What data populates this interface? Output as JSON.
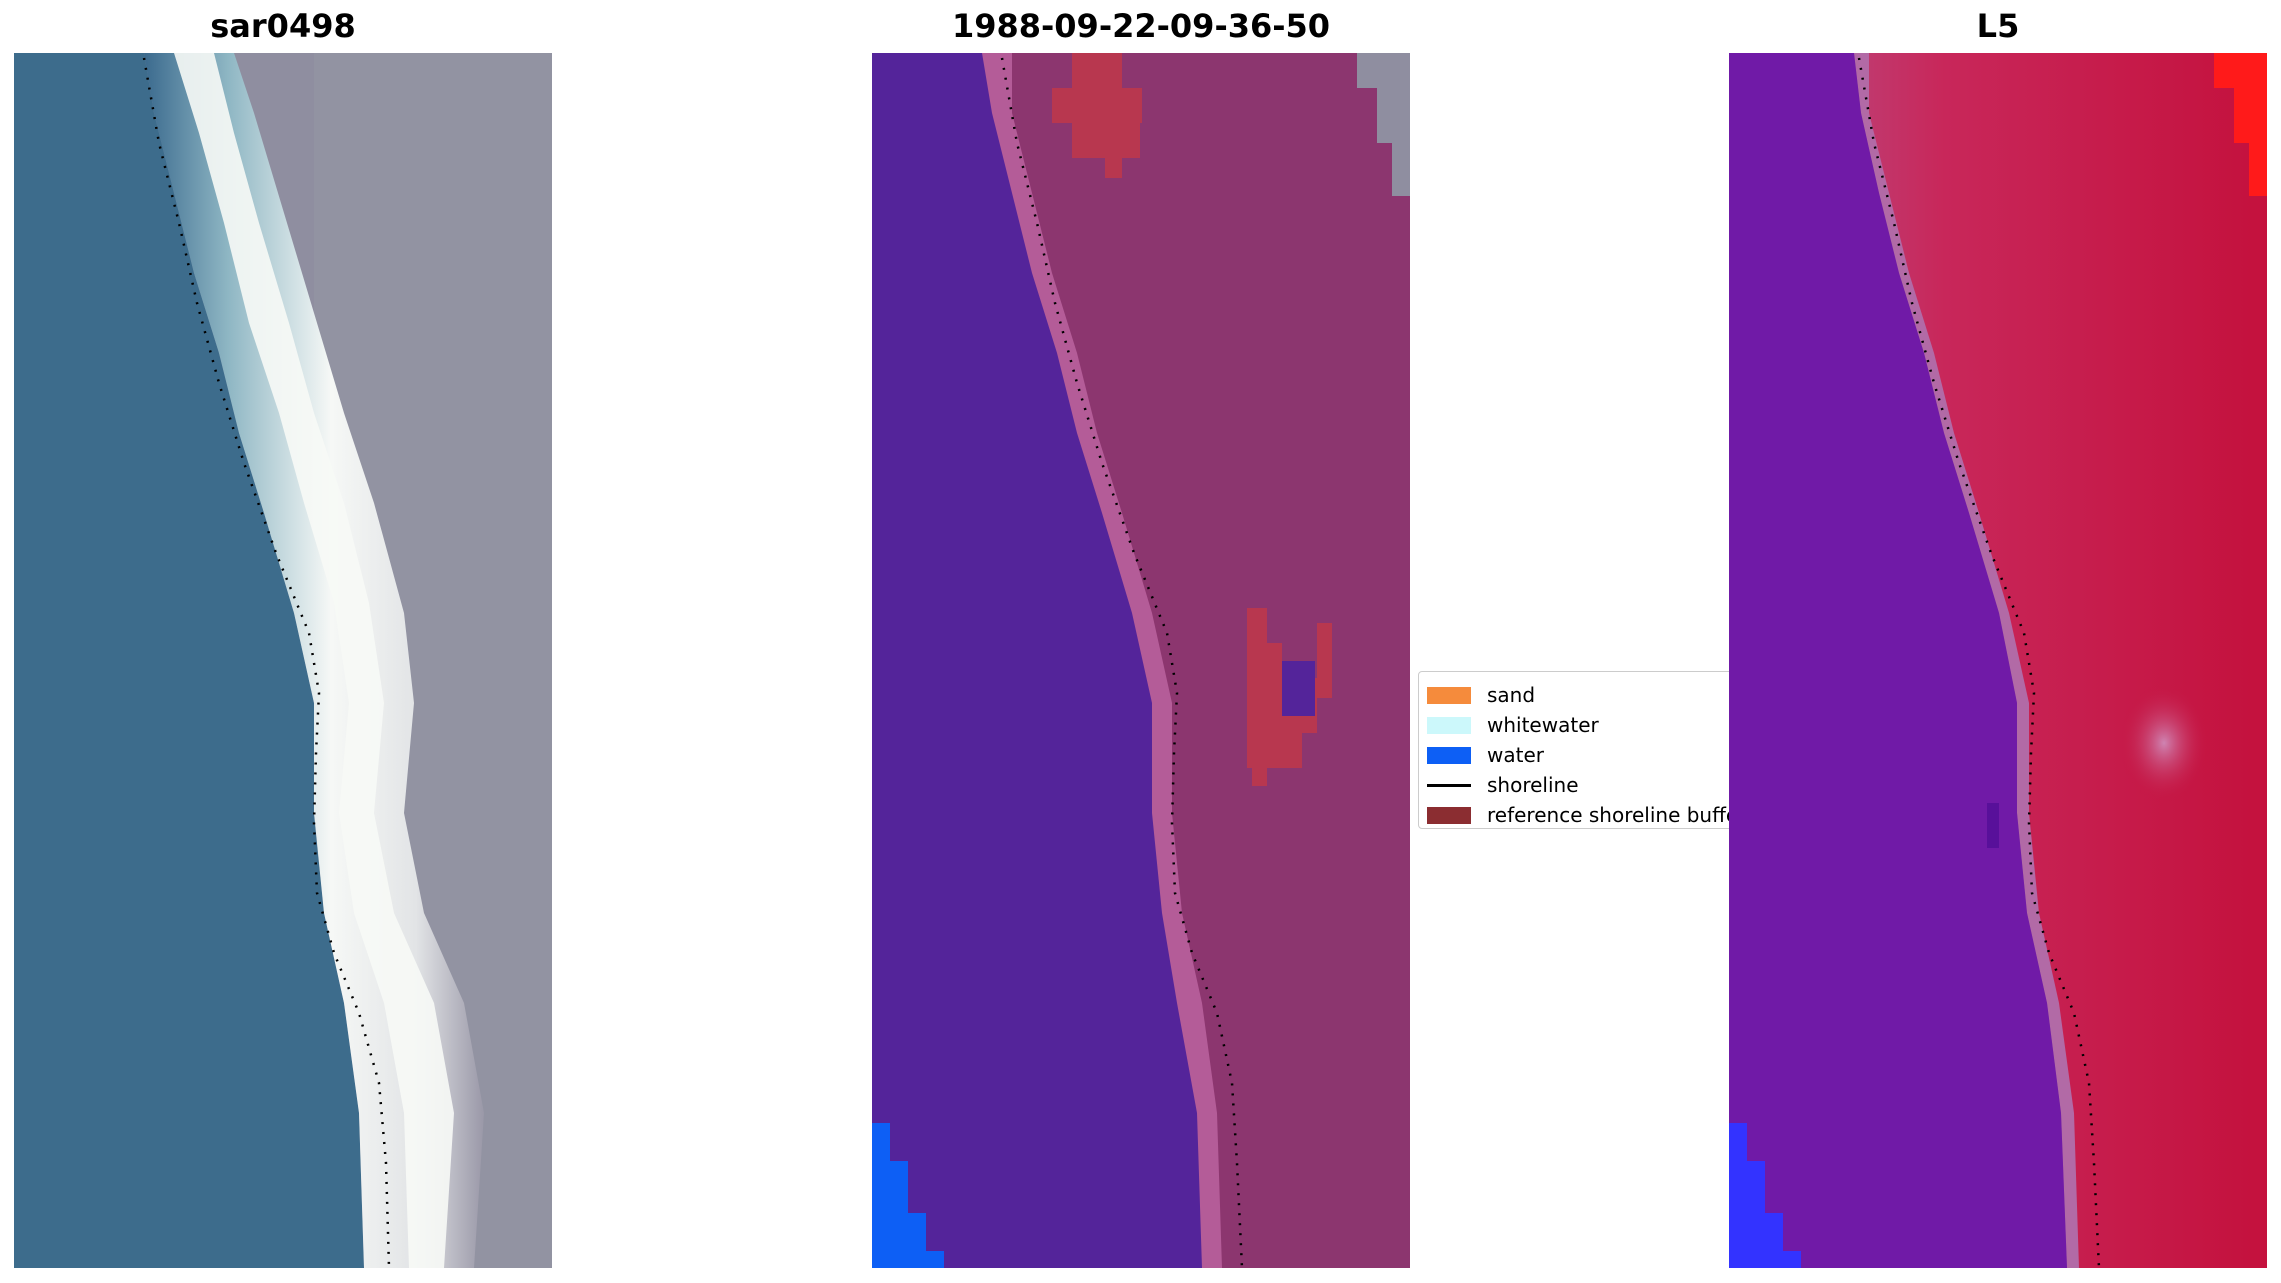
{
  "panels": [
    {
      "title": "sar0498"
    },
    {
      "title": "1988-09-22-09-36-50"
    },
    {
      "title": "L5"
    }
  ],
  "legend": {
    "items": [
      {
        "label": "sand",
        "color": "#f58b3c"
      },
      {
        "label": "whitewater",
        "color": "#ccf8fb"
      },
      {
        "label": "water",
        "color": "#0d5ff5"
      },
      {
        "label": "shoreline",
        "color": "#000000"
      },
      {
        "label": "reference shoreline buffer",
        "color": "#8b2d31"
      }
    ]
  },
  "colors": {
    "rgb_water": "#3b6a8e",
    "rgb_whitewater": "#f4f7f5",
    "rgb_land": "#8f8ea0",
    "class_water": "#54249a",
    "class_buffer_sand": "#b45c98",
    "class_land": "#8c366f",
    "class_buffer_red": "#b8374f",
    "index_water": "#6c16a6",
    "index_land": "#c4113d",
    "index_max": "#ff1a1a"
  }
}
